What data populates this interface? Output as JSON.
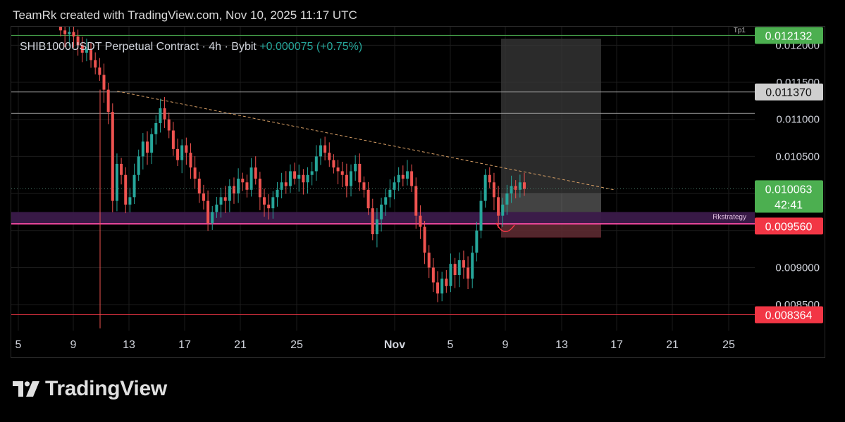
{
  "header": {
    "credit": "TeamRk created with TradingView.com, Nov 10, 2025 11:17 UTC"
  },
  "legend": {
    "symbol": "SHIB1000USDT Perpetual Contract · 4h · Bybit",
    "change": "+0.000075 (+0.75%)",
    "change_color": "#26a69a"
  },
  "logo": {
    "text": "TradingView"
  },
  "annotations": {
    "zone_label": "Rkstrategy",
    "tp_label": "Tp1"
  },
  "colors": {
    "up": "#26a69a",
    "down": "#ef5350",
    "grid": "#1c1c1c",
    "axis_text": "#d1d4dc",
    "green_badge": "#4caf50",
    "gray_badge": "#cfcfcf",
    "red_badge": "#f23645",
    "zone": "#3b1a4a",
    "trend": "#d9a066"
  },
  "chart_data": {
    "type": "candlestick",
    "symbol": "SHIB1000USDT",
    "timeframe": "4h",
    "exchange": "Bybit",
    "x_ticks": [
      "5",
      "9",
      "13",
      "17",
      "21",
      "25",
      "Nov",
      "5",
      "9",
      "13",
      "17",
      "21",
      "25"
    ],
    "y_ticks": [
      "0.012000",
      "0.011500",
      "0.011000",
      "0.010500",
      "0.010000",
      "0.009500",
      "0.009000",
      "0.008500"
    ],
    "ylim": [
      0.00815,
      0.01225
    ],
    "price_labels": [
      {
        "value": 0.012132,
        "label": "0.012132",
        "kind": "green"
      },
      {
        "value": 0.01137,
        "label": "0.011370",
        "kind": "gray"
      },
      {
        "value": 0.010063,
        "label": "0.010063",
        "sub": "42:41",
        "kind": "green"
      },
      {
        "value": 0.00956,
        "label": "0.009560",
        "kind": "red"
      },
      {
        "value": 0.008364,
        "label": "0.008364",
        "kind": "red"
      }
    ],
    "horizontal_lines": [
      {
        "value": 0.012132,
        "color": "#4caf50"
      },
      {
        "value": 0.01137,
        "color": "#9e9e9e"
      },
      {
        "value": 0.01108,
        "color": "#9e9e9e"
      },
      {
        "value": 0.008364,
        "color": "#f23645"
      }
    ],
    "zone": {
      "top": 0.00975,
      "bottom": 0.00959
    },
    "close_series": [
      0.0122,
      0.01215,
      0.01218,
      0.01212,
      0.012,
      0.0119,
      0.01195,
      0.0118,
      0.0117,
      0.0116,
      0.0114,
      0.0111,
      0.0099,
      0.0104,
      0.01025,
      0.00985,
      0.00995,
      0.01025,
      0.0105,
      0.0107,
      0.01055,
      0.0108,
      0.01095,
      0.01115,
      0.011,
      0.01085,
      0.0106,
      0.01045,
      0.01065,
      0.01055,
      0.01035,
      0.0102,
      0.01,
      0.0099,
      0.0096,
      0.00975,
      0.00985,
      0.00995,
      0.0099,
      0.0101,
      0.01,
      0.0102,
      0.01015,
      0.01005,
      0.01035,
      0.0102,
      0.00995,
      0.00985,
      0.0098,
      0.00995,
      0.01005,
      0.01015,
      0.0101,
      0.0103,
      0.0102,
      0.01025,
      0.01015,
      0.01025,
      0.0103,
      0.0105,
      0.01065,
      0.01055,
      0.01045,
      0.01035,
      0.0103,
      0.01025,
      0.0101,
      0.0103,
      0.0104,
      0.01015,
      0.01005,
      0.0098,
      0.00945,
      0.00965,
      0.00985,
      0.00995,
      0.01005,
      0.01015,
      0.01025,
      0.0102,
      0.0103,
      0.0101,
      0.0097,
      0.00955,
      0.0092,
      0.009,
      0.0088,
      0.00865,
      0.00885,
      0.00875,
      0.00905,
      0.0089,
      0.0091,
      0.009,
      0.00885,
      0.0092,
      0.0095,
      0.0099,
      0.01025,
      0.01015,
      0.00995,
      0.0097,
      0.00985,
      0.01,
      0.0101,
      0.01005,
      0.01015,
      0.01006
    ],
    "trendline": {
      "from": [
        0.13,
        0.01138
      ],
      "to": [
        0.74,
        0.01005
      ]
    }
  }
}
